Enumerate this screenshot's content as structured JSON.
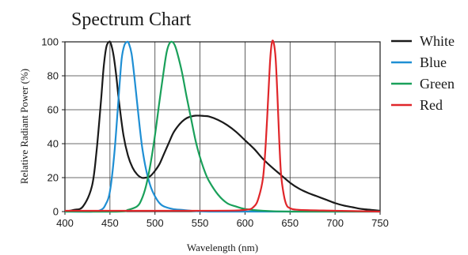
{
  "chart_data": {
    "type": "line",
    "title": "Spectrum Chart",
    "xlabel": "Wavelength (nm)",
    "ylabel": "Relative Radiant Power (%)",
    "xlim": [
      400,
      750
    ],
    "ylim": [
      0,
      100
    ],
    "x_ticks": [
      400,
      450,
      500,
      550,
      600,
      650,
      700,
      750
    ],
    "y_ticks": [
      0,
      20,
      40,
      60,
      80,
      100
    ],
    "grid": true,
    "legend_position": "right",
    "series": [
      {
        "name": "White",
        "color": "#1a1a1a",
        "x": [
          400,
          410,
          420,
          430,
          435,
          440,
          443,
          446,
          449,
          451,
          454,
          457,
          460,
          465,
          470,
          475,
          480,
          485,
          490,
          495,
          500,
          505,
          510,
          515,
          520,
          525,
          530,
          535,
          540,
          545,
          550,
          555,
          560,
          570,
          580,
          590,
          600,
          610,
          620,
          630,
          640,
          650,
          660,
          670,
          680,
          690,
          700,
          710,
          720,
          730,
          740,
          750
        ],
        "y": [
          0,
          1,
          3,
          15,
          35,
          65,
          85,
          97,
          100,
          99,
          92,
          80,
          65,
          45,
          33,
          26,
          22,
          20,
          20,
          21,
          24,
          28,
          34,
          40,
          46,
          50,
          53,
          55,
          56,
          56.5,
          56.5,
          56.3,
          56,
          54,
          51,
          47,
          42,
          37,
          31,
          26,
          21.5,
          17,
          13.5,
          11,
          9,
          7,
          5,
          3.5,
          2.5,
          1.5,
          1,
          0.5
        ]
      },
      {
        "name": "Blue",
        "color": "#1f8fd4",
        "x": [
          400,
          430,
          440,
          445,
          450,
          455,
          460,
          463,
          466,
          469,
          471,
          474,
          477,
          480,
          483,
          486,
          490,
          495,
          500,
          505,
          510,
          520,
          530,
          540,
          560,
          600,
          650,
          700,
          750
        ],
        "y": [
          0,
          0,
          1,
          4,
          12,
          35,
          70,
          90,
          98,
          100,
          99,
          93,
          80,
          65,
          50,
          37,
          25,
          15,
          9,
          5,
          3,
          1.5,
          1,
          0.5,
          0,
          0,
          0,
          0,
          0
        ]
      },
      {
        "name": "Green",
        "color": "#1aa05a",
        "x": [
          400,
          460,
          470,
          480,
          485,
          490,
          495,
          500,
          505,
          510,
          513,
          516,
          519,
          522,
          525,
          530,
          535,
          540,
          545,
          550,
          555,
          560,
          570,
          580,
          590,
          600,
          620,
          650,
          700,
          750
        ],
        "y": [
          0,
          0,
          1,
          3,
          7,
          15,
          28,
          45,
          65,
          84,
          94,
          99,
          100,
          98,
          93,
          82,
          68,
          55,
          42,
          32,
          24,
          18,
          10,
          5,
          3,
          1.5,
          0.5,
          0,
          0,
          0
        ]
      },
      {
        "name": "Red",
        "color": "#e0262a",
        "x": [
          400,
          560,
          600,
          610,
          615,
          620,
          623,
          626,
          628,
          630,
          632,
          634,
          636,
          638,
          640,
          643,
          646,
          650,
          660,
          700,
          750
        ],
        "y": [
          0.5,
          0.5,
          1,
          3,
          8,
          20,
          40,
          70,
          90,
          100,
          99,
          90,
          68,
          42,
          22,
          10,
          4,
          2,
          1,
          0.5,
          0
        ]
      }
    ]
  }
}
